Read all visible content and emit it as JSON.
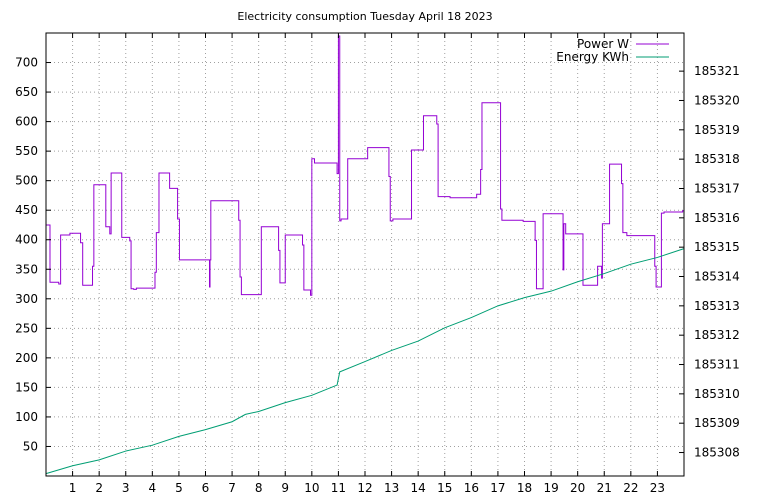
{
  "chart_data": {
    "type": "line",
    "title": "Electricity consumption Tuesday April 18 2023",
    "xlabel": "",
    "ylabel": "",
    "xlim": [
      0,
      24
    ],
    "ylim": [
      0,
      750
    ],
    "y2lim": [
      185307.2,
      185322.3
    ],
    "grid": true,
    "legend_position": "top-right",
    "x_ticks": [
      1,
      2,
      3,
      4,
      5,
      6,
      7,
      8,
      9,
      10,
      11,
      12,
      13,
      14,
      15,
      16,
      17,
      18,
      19,
      20,
      21,
      22,
      23
    ],
    "y_ticks": [
      50,
      100,
      150,
      200,
      250,
      300,
      350,
      400,
      450,
      500,
      550,
      600,
      650,
      700
    ],
    "y2_ticks": [
      185308,
      185309,
      185310,
      185311,
      185312,
      185313,
      185314,
      185315,
      185316,
      185317,
      185318,
      185319,
      185320,
      185321
    ],
    "series": [
      {
        "name": "Power W",
        "axis": "y",
        "color": "#9400d3",
        "step": true,
        "points": [
          [
            0.0,
            425
          ],
          [
            0.15,
            425
          ],
          [
            0.15,
            328
          ],
          [
            0.48,
            328
          ],
          [
            0.48,
            325
          ],
          [
            0.55,
            325
          ],
          [
            0.55,
            408
          ],
          [
            0.9,
            408
          ],
          [
            0.9,
            411
          ],
          [
            1.3,
            411
          ],
          [
            1.3,
            395
          ],
          [
            1.38,
            395
          ],
          [
            1.38,
            323
          ],
          [
            1.75,
            323
          ],
          [
            1.75,
            355
          ],
          [
            1.8,
            355
          ],
          [
            1.8,
            493
          ],
          [
            2.25,
            493
          ],
          [
            2.25,
            422
          ],
          [
            2.4,
            422
          ],
          [
            2.4,
            410
          ],
          [
            2.45,
            410
          ],
          [
            2.45,
            513
          ],
          [
            2.85,
            513
          ],
          [
            2.85,
            404
          ],
          [
            3.15,
            404
          ],
          [
            3.15,
            398
          ],
          [
            3.2,
            398
          ],
          [
            3.2,
            317
          ],
          [
            3.3,
            317
          ],
          [
            3.3,
            316
          ],
          [
            3.4,
            316
          ],
          [
            3.4,
            318
          ],
          [
            4.1,
            318
          ],
          [
            4.1,
            345
          ],
          [
            4.15,
            345
          ],
          [
            4.15,
            412
          ],
          [
            4.25,
            412
          ],
          [
            4.25,
            513
          ],
          [
            4.65,
            513
          ],
          [
            4.65,
            487
          ],
          [
            4.95,
            487
          ],
          [
            4.95,
            435
          ],
          [
            5.02,
            435
          ],
          [
            5.02,
            366
          ],
          [
            6.15,
            366
          ],
          [
            6.15,
            320
          ],
          [
            6.17,
            320
          ],
          [
            6.17,
            366
          ],
          [
            6.2,
            366
          ],
          [
            6.2,
            466
          ],
          [
            7.25,
            466
          ],
          [
            7.25,
            433
          ],
          [
            7.3,
            433
          ],
          [
            7.3,
            337
          ],
          [
            7.35,
            337
          ],
          [
            7.35,
            307
          ],
          [
            8.1,
            307
          ],
          [
            8.1,
            422
          ],
          [
            8.75,
            422
          ],
          [
            8.75,
            382
          ],
          [
            8.8,
            382
          ],
          [
            8.8,
            327
          ],
          [
            9.0,
            327
          ],
          [
            9.0,
            408
          ],
          [
            9.65,
            408
          ],
          [
            9.65,
            391
          ],
          [
            9.7,
            391
          ],
          [
            9.7,
            315
          ],
          [
            9.95,
            315
          ],
          [
            9.95,
            306
          ],
          [
            10.0,
            306
          ],
          [
            10.0,
            537
          ],
          [
            10.1,
            537
          ],
          [
            10.1,
            530
          ],
          [
            10.95,
            530
          ],
          [
            10.95,
            512
          ],
          [
            11.0,
            512
          ],
          [
            11.0,
            745
          ],
          [
            11.05,
            745
          ],
          [
            11.05,
            432
          ],
          [
            11.1,
            432
          ],
          [
            11.1,
            435
          ],
          [
            11.35,
            435
          ],
          [
            11.35,
            537
          ],
          [
            12.1,
            537
          ],
          [
            12.1,
            556
          ],
          [
            12.9,
            556
          ],
          [
            12.9,
            507
          ],
          [
            12.95,
            507
          ],
          [
            12.95,
            432
          ],
          [
            13.05,
            432
          ],
          [
            13.05,
            435
          ],
          [
            13.75,
            435
          ],
          [
            13.75,
            552
          ],
          [
            14.2,
            552
          ],
          [
            14.2,
            610
          ],
          [
            14.7,
            610
          ],
          [
            14.7,
            596
          ],
          [
            14.75,
            596
          ],
          [
            14.75,
            473
          ],
          [
            15.2,
            473
          ],
          [
            15.2,
            471
          ],
          [
            16.2,
            471
          ],
          [
            16.2,
            477
          ],
          [
            16.35,
            477
          ],
          [
            16.35,
            519
          ],
          [
            16.4,
            519
          ],
          [
            16.4,
            632
          ],
          [
            17.1,
            632
          ],
          [
            17.1,
            452
          ],
          [
            17.15,
            452
          ],
          [
            17.15,
            433
          ],
          [
            17.95,
            433
          ],
          [
            17.95,
            431
          ],
          [
            18.4,
            431
          ],
          [
            18.4,
            399
          ],
          [
            18.45,
            399
          ],
          [
            18.45,
            317
          ],
          [
            18.7,
            317
          ],
          [
            18.7,
            444
          ],
          [
            19.45,
            444
          ],
          [
            19.45,
            349
          ],
          [
            19.48,
            349
          ],
          [
            19.48,
            427
          ],
          [
            19.55,
            427
          ],
          [
            19.55,
            410
          ],
          [
            20.2,
            410
          ],
          [
            20.2,
            323
          ],
          [
            20.75,
            323
          ],
          [
            20.75,
            355
          ],
          [
            20.9,
            355
          ],
          [
            20.9,
            335
          ],
          [
            20.93,
            335
          ],
          [
            20.93,
            427
          ],
          [
            21.2,
            427
          ],
          [
            21.2,
            528
          ],
          [
            21.65,
            528
          ],
          [
            21.65,
            495
          ],
          [
            21.7,
            495
          ],
          [
            21.7,
            412
          ],
          [
            21.85,
            412
          ],
          [
            21.85,
            407
          ],
          [
            22.9,
            407
          ],
          [
            22.9,
            355
          ],
          [
            22.95,
            355
          ],
          [
            22.95,
            320
          ],
          [
            23.15,
            320
          ],
          [
            23.15,
            445
          ],
          [
            23.25,
            445
          ],
          [
            23.25,
            447
          ],
          [
            23.95,
            447
          ],
          [
            23.95,
            449
          ],
          [
            24.0,
            449
          ]
        ]
      },
      {
        "name": "Energy KWh",
        "axis": "y2",
        "color": "#009e73",
        "step": false,
        "points": [
          [
            0,
            185307.28
          ],
          [
            1,
            185307.55
          ],
          [
            2,
            185307.75
          ],
          [
            3,
            185308.05
          ],
          [
            4,
            185308.25
          ],
          [
            5,
            185308.55
          ],
          [
            6,
            185308.78
          ],
          [
            7,
            185309.05
          ],
          [
            7.5,
            185309.3
          ],
          [
            8,
            185309.4
          ],
          [
            9,
            185309.7
          ],
          [
            10,
            185309.95
          ],
          [
            10.95,
            185310.3
          ],
          [
            11.05,
            185310.75
          ],
          [
            12,
            185311.1
          ],
          [
            13,
            185311.48
          ],
          [
            14,
            185311.8
          ],
          [
            15,
            185312.25
          ],
          [
            16,
            185312.6
          ],
          [
            17,
            185313.0
          ],
          [
            18,
            185313.28
          ],
          [
            19,
            185313.5
          ],
          [
            20,
            185313.82
          ],
          [
            21,
            185314.1
          ],
          [
            22,
            185314.42
          ],
          [
            23,
            185314.65
          ],
          [
            24,
            185314.95
          ]
        ]
      }
    ]
  }
}
